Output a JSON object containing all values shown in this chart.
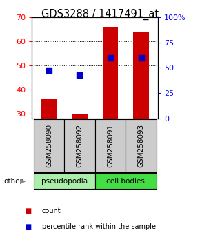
{
  "title": "GDS3288 / 1417491_at",
  "samples": [
    "GSM258090",
    "GSM258092",
    "GSM258091",
    "GSM258093"
  ],
  "counts": [
    36,
    30,
    66,
    64
  ],
  "percentiles": [
    48,
    46,
    53,
    53
  ],
  "ylim_left": [
    28,
    70
  ],
  "yticks_left": [
    30,
    40,
    50,
    60,
    70
  ],
  "ylim_right": [
    0,
    100
  ],
  "yticks_right": [
    0,
    25,
    50,
    75,
    100
  ],
  "yticklabels_right": [
    "0",
    "25",
    "50",
    "75",
    "100%"
  ],
  "bar_color": "#cc0000",
  "dot_color": "#0000cc",
  "groups": [
    {
      "label": "pseudopodia",
      "indices": [
        0,
        1
      ],
      "color": "#aaeeaa"
    },
    {
      "label": "cell bodies",
      "indices": [
        2,
        3
      ],
      "color": "#44dd44"
    }
  ],
  "bar_width": 0.5,
  "dot_size": 28,
  "legend_count_label": "count",
  "legend_pct_label": "percentile rank within the sample",
  "bg_color": "#ffffff",
  "sample_box_color": "#cccccc",
  "title_fontsize": 10.5,
  "tick_fontsize": 8
}
